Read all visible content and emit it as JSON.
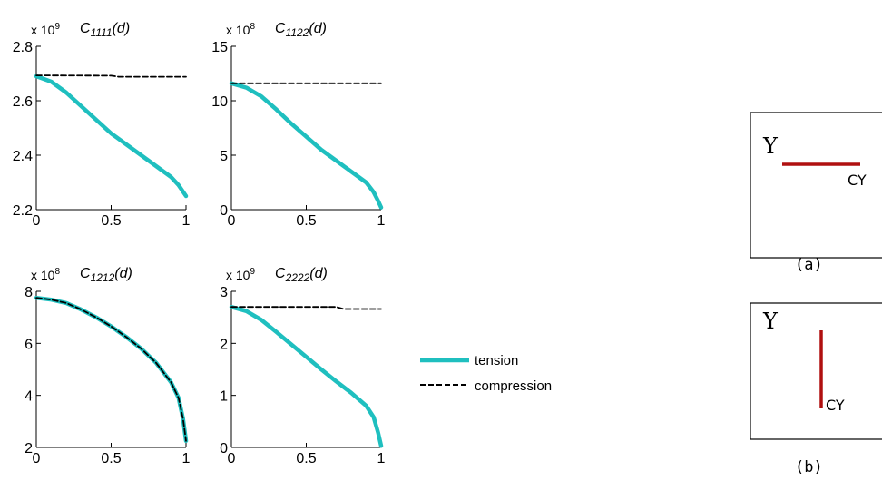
{
  "colors": {
    "tension": "#1fbfbf",
    "compression": "#000000",
    "crack": "#b01010",
    "axis": "#000000"
  },
  "chart_data": [
    {
      "type": "line",
      "title_main": "C",
      "title_sub": "1111",
      "title_tail": "(d)",
      "exponent_prefix": "x 10",
      "exponent": "9",
      "xlim": [
        0,
        1
      ],
      "ylim": [
        2.2,
        2.8
      ],
      "x_ticks": [
        "0",
        "0.5",
        "1"
      ],
      "y_ticks": [
        "2.2",
        "2.4",
        "2.6",
        "2.8"
      ],
      "series": [
        {
          "name": "tension",
          "x": [
            0,
            0.1,
            0.2,
            0.3,
            0.4,
            0.5,
            0.6,
            0.7,
            0.8,
            0.9,
            0.95,
            1.0
          ],
          "y": [
            2.69,
            2.67,
            2.63,
            2.58,
            2.53,
            2.48,
            2.44,
            2.4,
            2.36,
            2.32,
            2.29,
            2.25
          ]
        },
        {
          "name": "compression",
          "x": [
            0,
            0.5,
            0.55,
            1.0
          ],
          "y": [
            2.693,
            2.692,
            2.688,
            2.688
          ]
        }
      ]
    },
    {
      "type": "line",
      "title_main": "C",
      "title_sub": "1122",
      "title_tail": "(d)",
      "exponent_prefix": "x 10",
      "exponent": "8",
      "xlim": [
        0,
        1
      ],
      "ylim": [
        0,
        15
      ],
      "x_ticks": [
        "0",
        "0.5",
        "1"
      ],
      "y_ticks": [
        "0",
        "5",
        "10",
        "15"
      ],
      "series": [
        {
          "name": "tension",
          "x": [
            0,
            0.1,
            0.2,
            0.3,
            0.4,
            0.5,
            0.6,
            0.7,
            0.8,
            0.9,
            0.95,
            0.98,
            1.0
          ],
          "y": [
            11.6,
            11.2,
            10.4,
            9.2,
            7.9,
            6.7,
            5.5,
            4.5,
            3.5,
            2.5,
            1.6,
            0.8,
            0.2
          ]
        },
        {
          "name": "compression",
          "x": [
            0,
            1.0
          ],
          "y": [
            11.6,
            11.6
          ]
        }
      ]
    },
    {
      "type": "line",
      "title_main": "C",
      "title_sub": "1212",
      "title_tail": "(d)",
      "exponent_prefix": "x 10",
      "exponent": "8",
      "xlim": [
        0,
        1
      ],
      "ylim": [
        2,
        8
      ],
      "x_ticks": [
        "0",
        "0.5",
        "1"
      ],
      "y_ticks": [
        "2",
        "4",
        "6",
        "8"
      ],
      "series": [
        {
          "name": "tension",
          "x": [
            0,
            0.1,
            0.2,
            0.3,
            0.4,
            0.5,
            0.6,
            0.7,
            0.8,
            0.9,
            0.95,
            0.98,
            1.0
          ],
          "y": [
            7.75,
            7.68,
            7.55,
            7.3,
            7.0,
            6.65,
            6.25,
            5.8,
            5.25,
            4.5,
            3.9,
            3.1,
            2.25
          ]
        },
        {
          "name": "compression",
          "x": [
            0,
            0.1,
            0.2,
            0.3,
            0.4,
            0.5,
            0.6,
            0.7,
            0.8,
            0.9,
            0.95,
            0.98,
            1.0
          ],
          "y": [
            7.75,
            7.68,
            7.55,
            7.3,
            7.0,
            6.65,
            6.25,
            5.8,
            5.25,
            4.5,
            3.9,
            3.1,
            2.25
          ]
        }
      ]
    },
    {
      "type": "line",
      "title_main": "C",
      "title_sub": "2222",
      "title_tail": "(d)",
      "exponent_prefix": "x 10",
      "exponent": "9",
      "xlim": [
        0,
        1
      ],
      "ylim": [
        0,
        3
      ],
      "x_ticks": [
        "0",
        "0.5",
        "1"
      ],
      "y_ticks": [
        "0",
        "1",
        "2",
        "3"
      ],
      "series": [
        {
          "name": "tension",
          "x": [
            0,
            0.1,
            0.2,
            0.3,
            0.4,
            0.5,
            0.6,
            0.7,
            0.8,
            0.9,
            0.95,
            0.98,
            1.0
          ],
          "y": [
            2.7,
            2.62,
            2.45,
            2.22,
            1.98,
            1.74,
            1.5,
            1.27,
            1.05,
            0.8,
            0.58,
            0.28,
            0.03
          ]
        },
        {
          "name": "compression",
          "x": [
            0,
            0.7,
            0.75,
            1.0
          ],
          "y": [
            2.7,
            2.7,
            2.66,
            2.66
          ]
        }
      ]
    }
  ],
  "legend": {
    "tension": "tension",
    "compression": "compression"
  },
  "diagrams": [
    {
      "label_y": "Y",
      "label_cy": "CY",
      "caption": "(a)",
      "orientation": "horizontal"
    },
    {
      "label_y": "Y",
      "label_cy": "CY",
      "caption": "(b)",
      "orientation": "vertical"
    }
  ]
}
